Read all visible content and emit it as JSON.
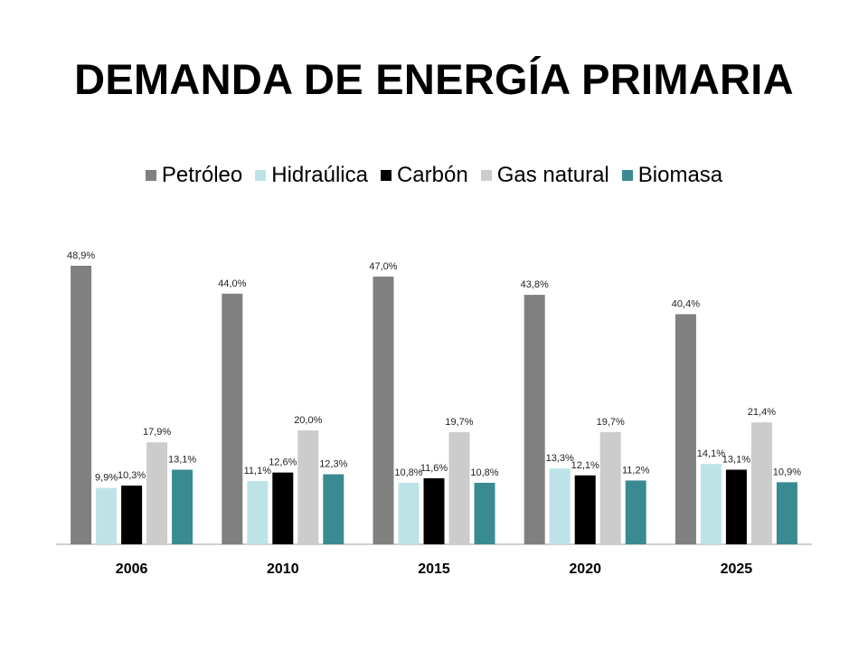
{
  "chart_data": {
    "type": "bar",
    "title": "DEMANDA DE ENERGÍA PRIMARIA",
    "xlabel": "",
    "ylabel": "",
    "categories": [
      "2006",
      "2010",
      "2015",
      "2020",
      "2025"
    ],
    "series": [
      {
        "name": "Petróleo",
        "color": "#808080",
        "values": [
          48.9,
          44.0,
          47.0,
          43.8,
          40.4
        ],
        "labels": [
          "48,9%",
          "44,0%",
          "47,0%",
          "43,8%",
          "40,4%"
        ]
      },
      {
        "name": "Hidraúlica",
        "color": "#bde3e7",
        "values": [
          9.9,
          11.1,
          10.8,
          13.3,
          14.1
        ],
        "labels": [
          "9,9%",
          "11,1%",
          "10,8%",
          "13,3%",
          "14,1%"
        ]
      },
      {
        "name": "Carbón",
        "color": "#000000",
        "values": [
          10.3,
          12.6,
          11.6,
          12.1,
          13.1
        ],
        "labels": [
          "10,3%",
          "12,6%",
          "11,6%",
          "12,1%",
          "13,1%"
        ]
      },
      {
        "name": "Gas natural",
        "color": "#cccccc",
        "values": [
          17.9,
          20.0,
          19.7,
          19.7,
          21.4
        ],
        "labels": [
          "17,9%",
          "20,0%",
          "19,7%",
          "19,7%",
          "21,4%"
        ]
      },
      {
        "name": "Biomasa",
        "color": "#3a8b91",
        "values": [
          13.1,
          12.3,
          10.8,
          11.2,
          10.9
        ],
        "labels": [
          "13,1%",
          "12,3%",
          "10,8%",
          "11,2%",
          "10,9%"
        ]
      }
    ],
    "ylim": [
      0,
      50
    ],
    "grid": false,
    "legend_position": "top",
    "data_labels": true
  }
}
